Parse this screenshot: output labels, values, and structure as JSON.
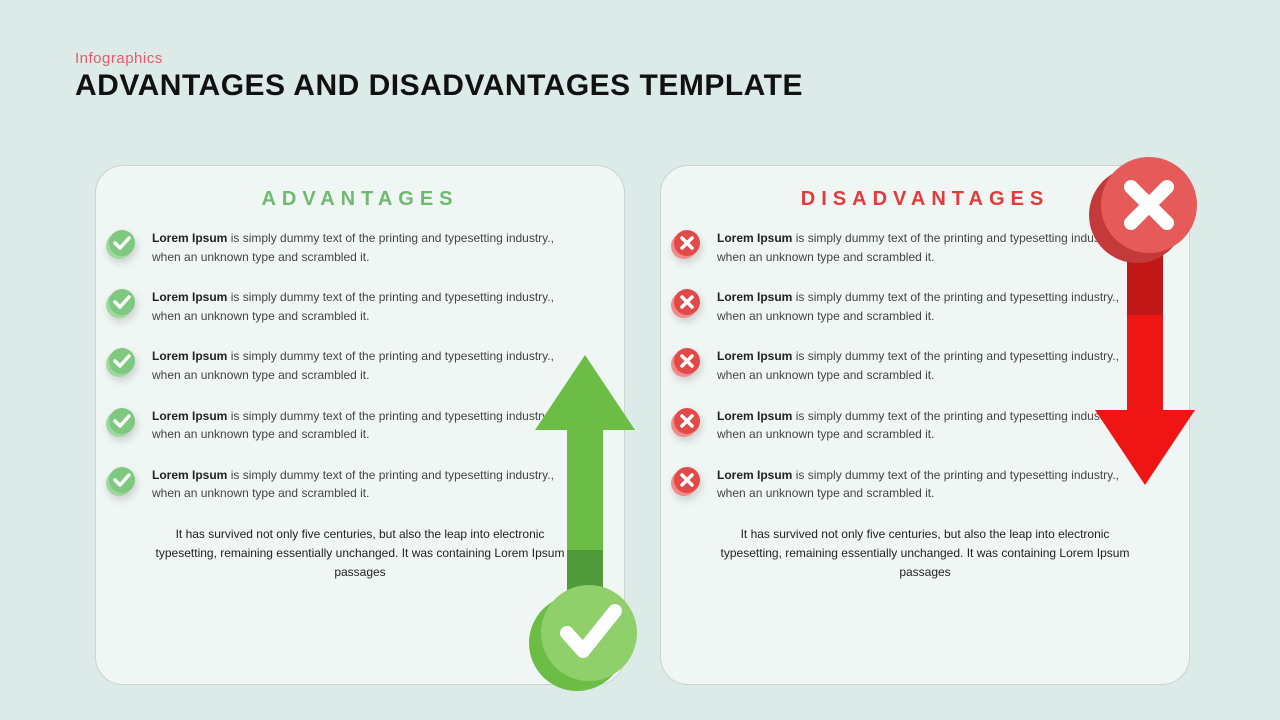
{
  "header": {
    "subtitle": "Infographics",
    "subtitle_color": "#e85a6b",
    "title": "ADVANTAGES AND DISADVANTAGES TEMPLATE",
    "title_color": "#111111"
  },
  "advantages": {
    "heading": "ADVANTAGES",
    "heading_color": "#6fb970",
    "bullet_circle_color": "#7ec97f",
    "bullet_circle_shadow": "#9fd89f",
    "bullet_glyph_color": "#ffffff",
    "items": [
      {
        "bold": "Lorem Ipsum",
        "rest": " is simply dummy text of the printing and typesetting industry., when an unknown type and scrambled it."
      },
      {
        "bold": "Lorem Ipsum",
        "rest": " is simply dummy text of the printing and typesetting industry., when an unknown type and scrambled it."
      },
      {
        "bold": "Lorem Ipsum",
        "rest": " is simply dummy text of the printing and typesetting industry., when an unknown type and scrambled it."
      },
      {
        "bold": "Lorem Ipsum",
        "rest": " is simply dummy text of the printing and typesetting industry., when an unknown type and scrambled it."
      },
      {
        "bold": "Lorem Ipsum",
        "rest": " is simply dummy text of the printing and typesetting industry., when an unknown type and scrambled it."
      }
    ],
    "footer": "It has survived not only five centuries, but also the leap into electronic typesetting, remaining essentially unchanged. It was containing Lorem Ipsum passages",
    "arrow": {
      "shaft_color_top": "#6bbd45",
      "shaft_color_bottom": "#4f9a3a",
      "circle_back_color": "#6bbd45",
      "circle_front_color": "#8fd06a",
      "check_color": "#ffffff"
    }
  },
  "disadvantages": {
    "heading": "DISADVANTAGES",
    "heading_color": "#e23b3b",
    "bullet_circle_color": "#e24a4a",
    "bullet_circle_shadow": "#f28a8a",
    "bullet_glyph_color": "#ffffff",
    "items": [
      {
        "bold": "Lorem Ipsum",
        "rest": " is simply dummy text of the printing and typesetting industry., when an unknown type and scrambled it."
      },
      {
        "bold": "Lorem Ipsum",
        "rest": " is simply dummy text of the printing and typesetting industry., when an unknown type and scrambled it."
      },
      {
        "bold": "Lorem Ipsum",
        "rest": " is simply dummy text of the printing and typesetting industry., when an unknown type and scrambled it."
      },
      {
        "bold": "Lorem Ipsum",
        "rest": " is simply dummy text of the printing and typesetting industry., when an unknown type and scrambled it."
      },
      {
        "bold": "Lorem Ipsum",
        "rest": " is simply dummy text of the printing and typesetting industry., when an unknown type and scrambled it."
      }
    ],
    "footer": "It has survived not only five centuries, but also the leap into electronic typesetting, remaining essentially unchanged. It was containing Lorem Ipsum passages",
    "arrow": {
      "shaft_color_top": "#c11717",
      "shaft_color_bottom": "#f01515",
      "circle_back_color": "#c43a3a",
      "circle_front_color": "#e65a5a",
      "x_color": "#ffffff"
    }
  },
  "layout": {
    "background": "#dcebe8",
    "card_background": "#f0f6f4",
    "card_border": "#c8d4d1"
  }
}
